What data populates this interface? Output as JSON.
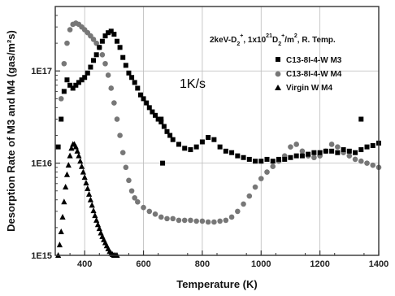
{
  "chart_data": {
    "type": "scatter",
    "title": "",
    "xlabel": "Temperature (K)",
    "ylabel": "Desorption Rate of M3 and M4 (gas/m²s)",
    "xlim": [
      300,
      1400
    ],
    "ylim": [
      1000000000000000.0,
      5e+17
    ],
    "yscale": "log",
    "grid": true,
    "legend_position": "top-right",
    "x_ticks": [
      400,
      600,
      800,
      1000,
      1200,
      1400
    ],
    "x_tick_labels": [
      "400",
      "600",
      "800",
      "1000",
      "1200",
      "1400"
    ],
    "y_ticks": [
      1000000000000000.0,
      1e+16,
      1e+17
    ],
    "y_tick_labels": [
      "1E15",
      "1E16",
      "1E17"
    ],
    "annotations": {
      "condition_main": "2keV-D",
      "condition_sub1": "2",
      "condition_sup1": "+",
      "condition_mid": ", 1x10",
      "condition_sup2": "21",
      "condition_d": "D",
      "condition_sub2": "2",
      "condition_sup3": "+",
      "condition_tail": "/m",
      "condition_sup4": "2",
      "condition_end": ", R. Temp.",
      "heating_rate": "1K/s"
    },
    "series": [
      {
        "name": "C13-8I-4-W M3",
        "marker": "square",
        "color": "#000000",
        "x": [
          310,
          320,
          330,
          340,
          350,
          360,
          370,
          380,
          390,
          400,
          410,
          420,
          430,
          440,
          450,
          460,
          470,
          480,
          490,
          500,
          510,
          520,
          530,
          540,
          550,
          560,
          570,
          580,
          590,
          600,
          610,
          620,
          630,
          640,
          650,
          660,
          670,
          680,
          690,
          700,
          720,
          740,
          760,
          780,
          800,
          820,
          840,
          860,
          880,
          900,
          920,
          940,
          960,
          980,
          1000,
          1020,
          1040,
          1060,
          1080,
          1100,
          1120,
          1140,
          1160,
          1180,
          1200,
          1220,
          1240,
          1260,
          1280,
          1300,
          1320,
          1340,
          1360,
          1380,
          1400
        ],
        "values": [
          1.5e+16,
          3e+16,
          6e+16,
          8e+16,
          7e+16,
          6.5e+16,
          7e+16,
          7.5e+16,
          8e+16,
          8.5e+16,
          9.5e+16,
          1.1e+17,
          1.3e+17,
          1.5e+17,
          1.8e+17,
          2.1e+17,
          2.4e+17,
          2.6e+17,
          2.7e+17,
          2.5e+17,
          2.1e+17,
          1.8e+17,
          1.4e+17,
          1.15e+17,
          9.5e+16,
          8.5e+16,
          7.5e+16,
          6.5e+16,
          5.5e+16,
          5e+16,
          4.5e+16,
          4e+16,
          3.6e+16,
          3.3e+16,
          3e+16,
          2.8e+16,
          2.5e+16,
          2.2e+16,
          2e+16,
          1.8e+16,
          1.6e+16,
          1.45e+16,
          1.4e+16,
          1.5e+16,
          1.7e+16,
          1.9e+16,
          1.8e+16,
          1.5e+16,
          1.35e+16,
          1.3e+16,
          1.2e+16,
          1.15e+16,
          1.1e+16,
          1.05e+16,
          1.05e+16,
          1.1e+16,
          1.05e+16,
          1.1e+16,
          1.1e+16,
          1.15e+16,
          1.2e+16,
          1.2e+16,
          1.25e+16,
          1.3e+16,
          1.3e+16,
          1.35e+16,
          1.35e+16,
          1.3e+16,
          1.4e+16,
          1.35e+16,
          1.3e+16,
          1.4e+16,
          1.5e+16,
          1.55e+16,
          1.65e+16
        ],
        "outliers": [
          [
            660,
            3e+16
          ],
          [
            665,
            1e+16
          ],
          [
            1340,
            3e+16
          ]
        ]
      },
      {
        "name": "C13-8I-4-W M4",
        "marker": "circle",
        "color": "#777777",
        "x": [
          320,
          330,
          340,
          350,
          360,
          370,
          380,
          390,
          400,
          410,
          420,
          430,
          440,
          450,
          460,
          470,
          480,
          490,
          500,
          510,
          520,
          530,
          540,
          550,
          560,
          570,
          580,
          600,
          620,
          640,
          660,
          680,
          700,
          720,
          740,
          760,
          780,
          800,
          820,
          840,
          860,
          880,
          900,
          920,
          940,
          960,
          980,
          1000,
          1020,
          1040,
          1060,
          1080,
          1100,
          1120,
          1140,
          1160,
          1180,
          1200,
          1220,
          1240,
          1260,
          1280,
          1300,
          1320,
          1340,
          1360,
          1380,
          1400
        ],
        "values": [
          5e+16,
          1.2e+17,
          2e+17,
          2.8e+17,
          3.2e+17,
          3.3e+17,
          3.2e+17,
          3e+17,
          2.8e+17,
          2.6e+17,
          2.4e+17,
          2.2e+17,
          2e+17,
          1.8e+17,
          1.5e+17,
          1.2e+17,
          9e+16,
          6.5e+16,
          4.5e+16,
          3e+16,
          2e+16,
          1.3e+16,
          9000000000000000.0,
          6500000000000000.0,
          5000000000000000.0,
          4200000000000000.0,
          3800000000000000.0,
          3300000000000000.0,
          3000000000000000.0,
          2800000000000000.0,
          2600000000000000.0,
          2500000000000000.0,
          2500000000000000.0,
          2400000000000000.0,
          2400000000000000.0,
          2400000000000000.0,
          2350000000000000.0,
          2350000000000000.0,
          2300000000000000.0,
          2300000000000000.0,
          2350000000000000.0,
          2400000000000000.0,
          2600000000000000.0,
          3000000000000000.0,
          3600000000000000.0,
          4400000000000000.0,
          5500000000000000.0,
          6800000000000000.0,
          8000000000000000.0,
          9200000000000000.0,
          1.05e+16,
          1.2e+16,
          1.5e+16,
          1.6e+16,
          1.35e+16,
          1.2e+16,
          1.15e+16,
          1.2e+16,
          1.35e+16,
          1.6e+16,
          1.5e+16,
          1.3e+16,
          1.2e+16,
          1.1e+16,
          1.05e+16,
          1e+16,
          9500000000000000.0,
          9000000000000000.0
        ]
      },
      {
        "name": "Virgin W M4",
        "marker": "triangle",
        "color": "#000000",
        "x": [
          310,
          315,
          320,
          325,
          330,
          335,
          340,
          345,
          350,
          355,
          360,
          365,
          370,
          375,
          380,
          385,
          390,
          395,
          400,
          405,
          410,
          415,
          420,
          425,
          430,
          435,
          440,
          445,
          450,
          455,
          460,
          465,
          470,
          475,
          480,
          485,
          490,
          495,
          500,
          505,
          510
        ],
        "values": [
          1000000000000000.0,
          1300000000000000.0,
          1800000000000000.0,
          2600000000000000.0,
          3800000000000000.0,
          5500000000000000.0,
          7500000000000000.0,
          9500000000000000.0,
          1.2e+16,
          1.45e+16,
          1.6e+16,
          1.6e+16,
          1.5e+16,
          1.35e+16,
          1.2e+16,
          1.05e+16,
          9200000000000000.0,
          8000000000000000.0,
          7000000000000000.0,
          6100000000000000.0,
          5300000000000000.0,
          4600000000000000.0,
          4000000000000000.0,
          3500000000000000.0,
          3050000000000000.0,
          2700000000000000.0,
          2400000000000000.0,
          2150000000000000.0,
          1950000000000000.0,
          1750000000000000.0,
          1600000000000000.0,
          1480000000000000.0,
          1370000000000000.0,
          1270000000000000.0,
          1180000000000000.0,
          1100000000000000.0,
          1050000000000000.0,
          1020000000000000.0,
          1000000000000000.0,
          1000000000000000.0,
          1000000000000000.0
        ]
      }
    ]
  }
}
